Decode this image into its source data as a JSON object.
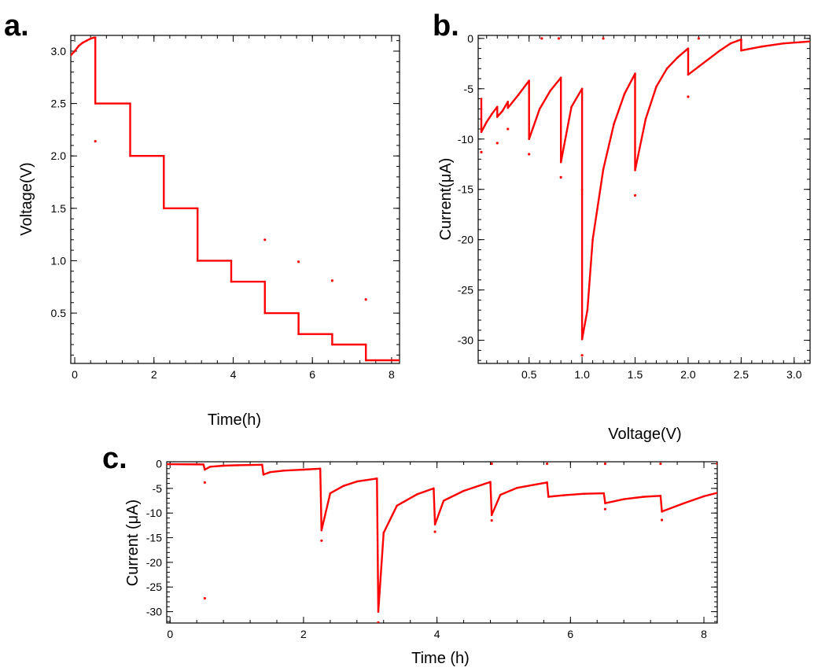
{
  "colors": {
    "series": "#ff0000",
    "axis": "#000000"
  },
  "chart_data": [
    {
      "panel": "a.",
      "type": "line",
      "xlabel": "Time(h)",
      "ylabel": "Voltage(V)",
      "xlim": [
        -0.1,
        8.2
      ],
      "ylim": [
        0.02,
        3.15
      ],
      "xticks": [
        0,
        2,
        4,
        6,
        8
      ],
      "xtick_labels": [
        "0",
        "2",
        "4",
        "6",
        "8"
      ],
      "yticks": [
        0.5,
        1.0,
        1.5,
        2.0,
        2.5,
        3.0
      ],
      "ytick_labels": [
        "0.5",
        "1.0",
        "1.5",
        "2.0",
        "2.5",
        "3.0"
      ],
      "grid": false,
      "series": [
        {
          "x": [
            -0.1,
            0.0,
            0.1,
            0.2,
            0.3,
            0.4,
            0.5,
            0.52,
            0.52,
            1.4,
            1.4,
            2.25,
            2.25,
            3.1,
            3.1,
            3.95,
            3.95,
            4.8,
            4.8,
            5.65,
            5.65,
            6.5,
            6.5,
            7.35,
            7.35,
            8.2
          ],
          "y": [
            2.96,
            3.0,
            3.05,
            3.08,
            3.1,
            3.12,
            3.13,
            3.13,
            2.5,
            2.5,
            2.0,
            2.0,
            1.5,
            1.5,
            1.0,
            1.0,
            0.8,
            0.8,
            0.5,
            0.5,
            0.3,
            0.3,
            0.2,
            0.2,
            0.05,
            0.05
          ]
        }
      ],
      "outliers": {
        "x": [
          0.52,
          4.8,
          5.65,
          6.5,
          7.35
        ],
        "y": [
          2.14,
          1.2,
          0.99,
          0.81,
          0.63
        ]
      }
    },
    {
      "panel": "b.",
      "type": "scatter",
      "xlabel": "Voltage(V)",
      "ylabel": "Current(μA)",
      "xlim": [
        0.02,
        3.15
      ],
      "ylim": [
        -32.3,
        0.3
      ],
      "xticks": [
        0.5,
        1.0,
        1.5,
        2.0,
        2.5,
        3.0
      ],
      "xtick_labels": [
        "0.5",
        "1.0",
        "1.5",
        "2.0",
        "2.5",
        "3.0"
      ],
      "yticks": [
        0,
        -5,
        -10,
        -15,
        -20,
        -25,
        -30
      ],
      "ytick_labels": [
        "0",
        "-5",
        "-10",
        "-15",
        "-20",
        "-25",
        "-30"
      ],
      "grid": false,
      "series": [
        {
          "x": [
            0.05,
            0.05,
            0.1,
            0.15,
            0.2,
            0.2,
            0.25,
            0.3,
            0.3,
            0.4,
            0.5,
            0.5,
            0.6,
            0.7,
            0.8,
            0.8,
            0.9,
            1.0,
            1.0,
            1.0,
            1.05,
            1.1,
            1.2,
            1.3,
            1.4,
            1.5,
            1.5,
            1.6,
            1.7,
            1.8,
            1.9,
            2.0,
            2.0,
            2.1,
            2.2,
            2.3,
            2.4,
            2.5,
            2.5,
            2.7,
            2.9,
            3.15
          ],
          "y": [
            -6.0,
            -9.3,
            -8.3,
            -7.5,
            -6.8,
            -7.8,
            -7.2,
            -6.3,
            -6.9,
            -5.6,
            -4.2,
            -10.0,
            -7.0,
            -5.2,
            -3.9,
            -12.3,
            -6.8,
            -5.0,
            -15.0,
            -29.9,
            -27.0,
            -20.0,
            -13.0,
            -8.5,
            -5.5,
            -3.5,
            -13.1,
            -8.0,
            -4.8,
            -3.0,
            -1.9,
            -1.0,
            -3.6,
            -2.8,
            -2.0,
            -1.2,
            -0.5,
            -0.1,
            -1.2,
            -0.8,
            -0.5,
            -0.3
          ]
        }
      ],
      "outliers": {
        "x": [
          0.05,
          0.2,
          0.3,
          0.5,
          0.8,
          1.0,
          1.5,
          2.0,
          0.62,
          0.78,
          1.2,
          2.1
        ],
        "y": [
          -11.3,
          -10.4,
          -9.0,
          -11.5,
          -13.8,
          -31.5,
          -15.6,
          -5.8,
          0,
          0,
          0,
          0
        ]
      }
    },
    {
      "panel": "c.",
      "type": "scatter",
      "xlabel": "Time (h)",
      "ylabel": "Current (μA)",
      "xlim": [
        -0.05,
        8.2
      ],
      "ylim": [
        -32.3,
        0.4
      ],
      "xticks": [
        0,
        2,
        4,
        6,
        8
      ],
      "xtick_labels": [
        "0",
        "2",
        "4",
        "6",
        "8"
      ],
      "yticks": [
        0,
        -5,
        -10,
        -15,
        -20,
        -25,
        -30
      ],
      "ytick_labels": [
        "0",
        "-5",
        "-10",
        "-15",
        "-20",
        "-25",
        "-30"
      ],
      "grid": false,
      "series": [
        {
          "x": [
            -0.05,
            0.5,
            0.52,
            0.6,
            0.8,
            1.0,
            1.38,
            1.4,
            1.5,
            1.7,
            2.0,
            2.25,
            2.27,
            2.4,
            2.6,
            2.8,
            3.1,
            3.12,
            3.2,
            3.4,
            3.7,
            3.95,
            3.97,
            4.1,
            4.4,
            4.8,
            4.82,
            4.95,
            5.2,
            5.65,
            5.67,
            5.9,
            6.2,
            6.5,
            6.52,
            6.8,
            7.1,
            7.35,
            7.37,
            7.7,
            8.0,
            8.2
          ],
          "y": [
            -0.1,
            -0.15,
            -1.2,
            -0.6,
            -0.4,
            -0.3,
            -0.2,
            -2.2,
            -1.7,
            -1.4,
            -1.2,
            -1.0,
            -13.5,
            -6.0,
            -4.5,
            -3.6,
            -3.0,
            -30.0,
            -14.0,
            -8.5,
            -6.2,
            -5.0,
            -12.3,
            -7.5,
            -5.5,
            -3.7,
            -10.4,
            -6.3,
            -4.9,
            -3.8,
            -6.7,
            -6.4,
            -6.1,
            -6.0,
            -8.0,
            -7.2,
            -6.7,
            -6.5,
            -9.7,
            -8.0,
            -6.6,
            -5.9
          ]
        }
      ],
      "outliers": {
        "x": [
          0.52,
          0.52,
          2.27,
          3.12,
          3.97,
          4.82,
          6.52,
          7.37,
          4.82,
          5.65,
          6.52,
          7.35,
          8.2
        ],
        "y": [
          -3.8,
          -27.3,
          -15.6,
          -32.2,
          -13.8,
          -11.5,
          -9.2,
          -11.4,
          0,
          0,
          0,
          0,
          0
        ]
      }
    }
  ]
}
